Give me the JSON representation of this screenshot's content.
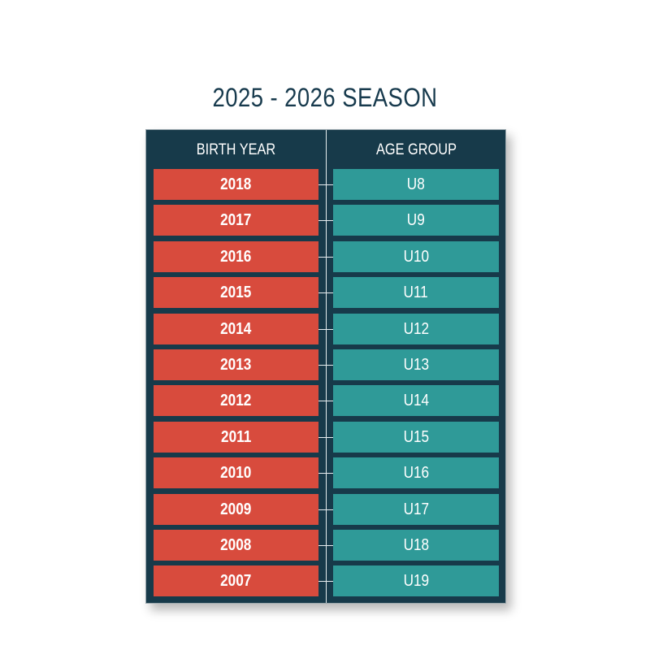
{
  "title": "2025 - 2026 SEASON",
  "headers": {
    "birth_year": "BIRTH YEAR",
    "age_group": "AGE GROUP"
  },
  "rows": [
    {
      "year": "2018",
      "age": "U8"
    },
    {
      "year": "2017",
      "age": "U9"
    },
    {
      "year": "2016",
      "age": "U10"
    },
    {
      "year": "2015",
      "age": "U11"
    },
    {
      "year": "2014",
      "age": "U12"
    },
    {
      "year": "2013",
      "age": "U13"
    },
    {
      "year": "2012",
      "age": "U14"
    },
    {
      "year": "2011",
      "age": "U15"
    },
    {
      "year": "2010",
      "age": "U16"
    },
    {
      "year": "2009",
      "age": "U17"
    },
    {
      "year": "2008",
      "age": "U18"
    },
    {
      "year": "2007",
      "age": "U19"
    }
  ],
  "colors": {
    "panel": "#173a4a",
    "birth_year_cell": "#d84b3d",
    "age_group_cell": "#2f9a98",
    "title": "#173a4d"
  }
}
